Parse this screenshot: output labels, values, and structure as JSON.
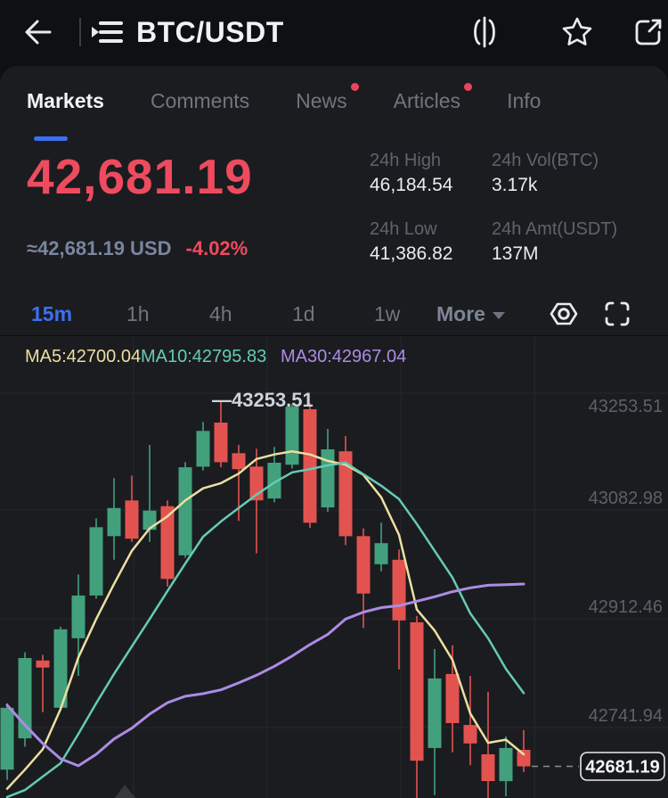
{
  "header": {
    "title": "BTC/USDT",
    "back_icon": "back-arrow",
    "pair_list_icon": "watchlist-list",
    "action_icons": [
      "compare-candles",
      "favorite-star",
      "share-export"
    ]
  },
  "tabs": [
    {
      "label": "Markets",
      "active": true,
      "badge": false
    },
    {
      "label": "Comments",
      "active": false,
      "badge": false
    },
    {
      "label": "News",
      "active": false,
      "badge": true
    },
    {
      "label": "Articles",
      "active": false,
      "badge": true
    },
    {
      "label": "Info",
      "active": false,
      "badge": false
    }
  ],
  "price": {
    "last": "42,681.19",
    "fiat": "≈42,681.19 USD",
    "change_24h": "-4.02%"
  },
  "stats": [
    {
      "label": "24h High",
      "value": "46,184.54"
    },
    {
      "label": "24h Vol(BTC)",
      "value": "3.17k"
    },
    {
      "label": "24h Low",
      "value": "41,386.82"
    },
    {
      "label": "24h Amt(USDT)",
      "value": "137M"
    }
  ],
  "timeframes": [
    {
      "label": "15m",
      "active": true
    },
    {
      "label": "1h",
      "active": false
    },
    {
      "label": "4h",
      "active": false
    },
    {
      "label": "1d",
      "active": false
    },
    {
      "label": "1w",
      "active": false
    },
    {
      "label": "More",
      "active": false,
      "dropdown": true
    }
  ],
  "chart_data": {
    "type": "candlestick",
    "interval": "15m",
    "ma_labels": [
      {
        "text": "MA5:42700.04",
        "color": "#ecdfa0"
      },
      {
        "text": "MA10:42795.83",
        "color": "#63ccb5"
      },
      {
        "text": "MA30:42967.04",
        "color": "#ab8ce4"
      }
    ],
    "y_ticks": [
      43253.51,
      43082.98,
      42912.46,
      42741.94
    ],
    "grid_step_price": 170.53,
    "high_label": "—43253.51",
    "high_price": 43253.51,
    "last_price": 42681.19,
    "last_price_label": "42681.19",
    "legend_position": "top-left",
    "colors": {
      "up": "#42a17c",
      "down": "#e25350",
      "ma5": "#ecdfa0",
      "ma10": "#63ccb5",
      "ma30": "#ab8ce4",
      "grid": "#27282c",
      "tick_text": "#5d6067",
      "accent": "#3d6ff2",
      "price_red": "#ee4b5f"
    },
    "candles": [
      [
        42676,
        42780,
        42660,
        42773
      ],
      [
        42725,
        42860,
        42712,
        42851
      ],
      [
        42847,
        42856,
        42766,
        42836
      ],
      [
        42773,
        42900,
        42768,
        42896
      ],
      [
        42882,
        42982,
        42823,
        42949
      ],
      [
        42949,
        43070,
        42944,
        43056
      ],
      [
        43042,
        43133,
        43005,
        43086
      ],
      [
        43098,
        43137,
        43033,
        43038
      ],
      [
        43052,
        43185,
        43033,
        43082
      ],
      [
        43089,
        43098,
        42963,
        42975
      ],
      [
        43012,
        43158,
        43008,
        43150
      ],
      [
        43151,
        43221,
        43145,
        43207
      ],
      [
        43220,
        43253.51,
        43150,
        43158
      ],
      [
        43172,
        43185,
        43066,
        43147
      ],
      [
        43151,
        43179,
        43015,
        43098
      ],
      [
        43101,
        43182,
        43095,
        43157
      ],
      [
        43154,
        43249,
        43148,
        43245
      ],
      [
        43241,
        43250,
        43055,
        43063
      ],
      [
        43087,
        43210,
        43080,
        43178
      ],
      [
        43175,
        43199,
        43028,
        43042
      ],
      [
        43042,
        43054,
        42898,
        42952
      ],
      [
        42998,
        43063,
        42987,
        43031
      ],
      [
        43005,
        43021,
        42833,
        42910
      ],
      [
        42907,
        42917,
        42622,
        42690
      ],
      [
        42710,
        42865,
        42636,
        42819
      ],
      [
        42826,
        42871,
        42703,
        42749
      ],
      [
        42746,
        42823,
        42683,
        42717
      ],
      [
        42700,
        42798,
        42628,
        42658
      ],
      [
        42658,
        42728,
        42634,
        42710
      ],
      [
        42707,
        42738,
        42672,
        42681.19
      ]
    ],
    "ma5": [
      42646,
      42676,
      42708,
      42771,
      42852,
      42912,
      42967,
      43019,
      43054,
      43073,
      43098,
      43117,
      43125,
      43140,
      43163,
      43170,
      43175,
      43170,
      43160,
      43154,
      43138,
      43103,
      43044,
      42927,
      42894,
      42848,
      42764,
      42718,
      42723,
      42700.04
    ],
    "ma10": [
      42633,
      42644,
      42665,
      42686,
      42732,
      42780,
      42826,
      42869,
      42912,
      42956,
      42999,
      43041,
      43065,
      43086,
      43107,
      43126,
      43142,
      43147,
      43153,
      43157,
      43139,
      43121,
      43100,
      43061,
      43019,
      42977,
      42921,
      42882,
      42834,
      42795.83
    ],
    "ma30": [
      42777,
      42746,
      42717,
      42693,
      42682,
      42700,
      42724,
      42741,
      42763,
      42781,
      42791,
      42795,
      42801,
      42812,
      42824,
      42838,
      42854,
      42872,
      42888,
      42912,
      42923,
      42930,
      42933,
      42940,
      42947,
      42955,
      42961,
      42965,
      42966,
      42967.04
    ]
  }
}
